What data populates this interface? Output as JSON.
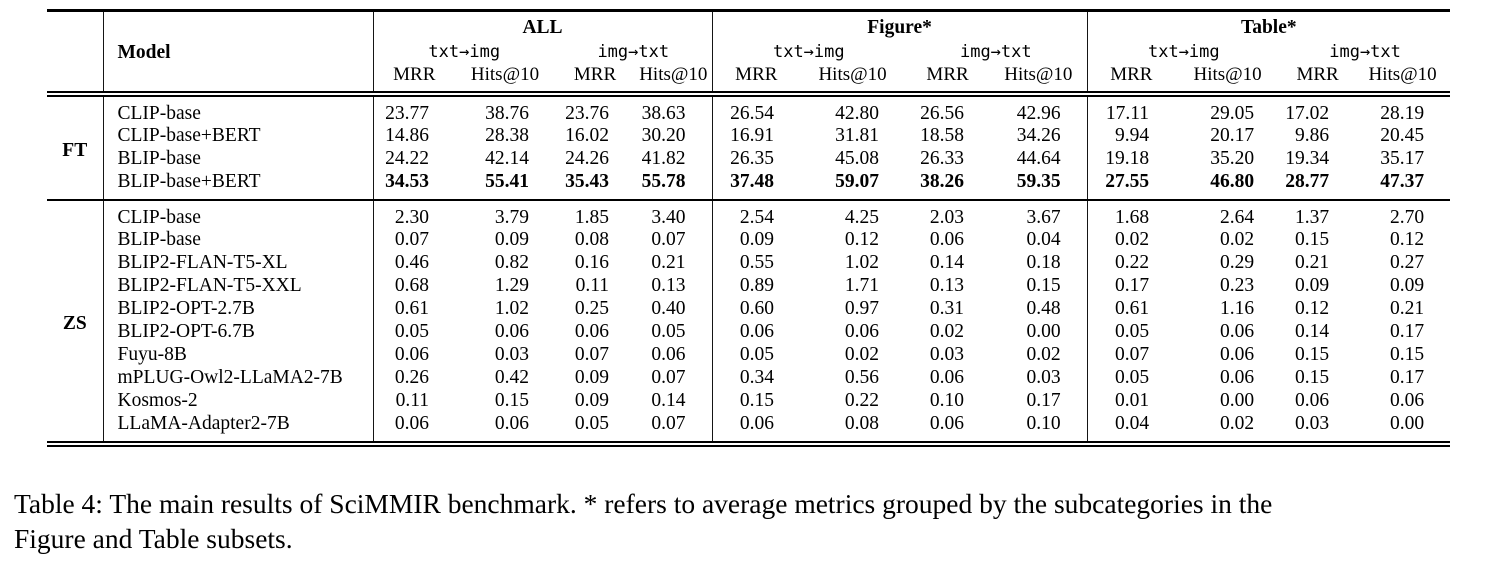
{
  "table": {
    "model_header": "Model",
    "groups": [
      {
        "label": "ALL"
      },
      {
        "label": "Figure*"
      },
      {
        "label": "Table*"
      }
    ],
    "directions": [
      "txt→img",
      "img→txt"
    ],
    "metrics": [
      "MRR",
      "Hits@10"
    ],
    "sections": [
      {
        "label": "FT",
        "rows": [
          {
            "model": "CLIP-base",
            "bold": false,
            "values": [
              "23.77",
              "38.76",
              "23.76",
              "38.63",
              "26.54",
              "42.80",
              "26.56",
              "42.96",
              "17.11",
              "29.05",
              "17.02",
              "28.19"
            ]
          },
          {
            "model": "CLIP-base+BERT",
            "bold": false,
            "values": [
              "14.86",
              "28.38",
              "16.02",
              "30.20",
              "16.91",
              "31.81",
              "18.58",
              "34.26",
              "9.94",
              "20.17",
              "9.86",
              "20.45"
            ]
          },
          {
            "model": "BLIP-base",
            "bold": false,
            "values": [
              "24.22",
              "42.14",
              "24.26",
              "41.82",
              "26.35",
              "45.08",
              "26.33",
              "44.64",
              "19.18",
              "35.20",
              "19.34",
              "35.17"
            ]
          },
          {
            "model": "BLIP-base+BERT",
            "bold": true,
            "values": [
              "34.53",
              "55.41",
              "35.43",
              "55.78",
              "37.48",
              "59.07",
              "38.26",
              "59.35",
              "27.55",
              "46.80",
              "28.77",
              "47.37"
            ]
          }
        ]
      },
      {
        "label": "ZS",
        "rows": [
          {
            "model": "CLIP-base",
            "bold": false,
            "values": [
              "2.30",
              "3.79",
              "1.85",
              "3.40",
              "2.54",
              "4.25",
              "2.03",
              "3.67",
              "1.68",
              "2.64",
              "1.37",
              "2.70"
            ]
          },
          {
            "model": "BLIP-base",
            "bold": false,
            "values": [
              "0.07",
              "0.09",
              "0.08",
              "0.07",
              "0.09",
              "0.12",
              "0.06",
              "0.04",
              "0.02",
              "0.02",
              "0.15",
              "0.12"
            ]
          },
          {
            "model": "BLIP2-FLAN-T5-XL",
            "bold": false,
            "values": [
              "0.46",
              "0.82",
              "0.16",
              "0.21",
              "0.55",
              "1.02",
              "0.14",
              "0.18",
              "0.22",
              "0.29",
              "0.21",
              "0.27"
            ]
          },
          {
            "model": "BLIP2-FLAN-T5-XXL",
            "bold": false,
            "values": [
              "0.68",
              "1.29",
              "0.11",
              "0.13",
              "0.89",
              "1.71",
              "0.13",
              "0.15",
              "0.17",
              "0.23",
              "0.09",
              "0.09"
            ]
          },
          {
            "model": "BLIP2-OPT-2.7B",
            "bold": false,
            "values": [
              "0.61",
              "1.02",
              "0.25",
              "0.40",
              "0.60",
              "0.97",
              "0.31",
              "0.48",
              "0.61",
              "1.16",
              "0.12",
              "0.21"
            ]
          },
          {
            "model": "BLIP2-OPT-6.7B",
            "bold": false,
            "values": [
              "0.05",
              "0.06",
              "0.06",
              "0.05",
              "0.06",
              "0.06",
              "0.02",
              "0.00",
              "0.05",
              "0.06",
              "0.14",
              "0.17"
            ]
          },
          {
            "model": "Fuyu-8B",
            "bold": false,
            "values": [
              "0.06",
              "0.03",
              "0.07",
              "0.06",
              "0.05",
              "0.02",
              "0.03",
              "0.02",
              "0.07",
              "0.06",
              "0.15",
              "0.15"
            ]
          },
          {
            "model": "mPLUG-Owl2-LLaMA2-7B",
            "bold": false,
            "values": [
              "0.26",
              "0.42",
              "0.09",
              "0.07",
              "0.34",
              "0.56",
              "0.06",
              "0.03",
              "0.05",
              "0.06",
              "0.15",
              "0.17"
            ]
          },
          {
            "model": "Kosmos-2",
            "bold": false,
            "values": [
              "0.11",
              "0.15",
              "0.09",
              "0.14",
              "0.15",
              "0.22",
              "0.10",
              "0.17",
              "0.01",
              "0.00",
              "0.06",
              "0.06"
            ]
          },
          {
            "model": "LLaMA-Adapter2-7B",
            "bold": false,
            "values": [
              "0.06",
              "0.06",
              "0.05",
              "0.07",
              "0.06",
              "0.08",
              "0.06",
              "0.10",
              "0.04",
              "0.02",
              "0.03",
              "0.00"
            ]
          }
        ]
      }
    ]
  },
  "caption": "Table 4: The main results of SciMMIR benchmark. * refers to average metrics grouped by the subcategories in the\nFigure and Table subsets."
}
